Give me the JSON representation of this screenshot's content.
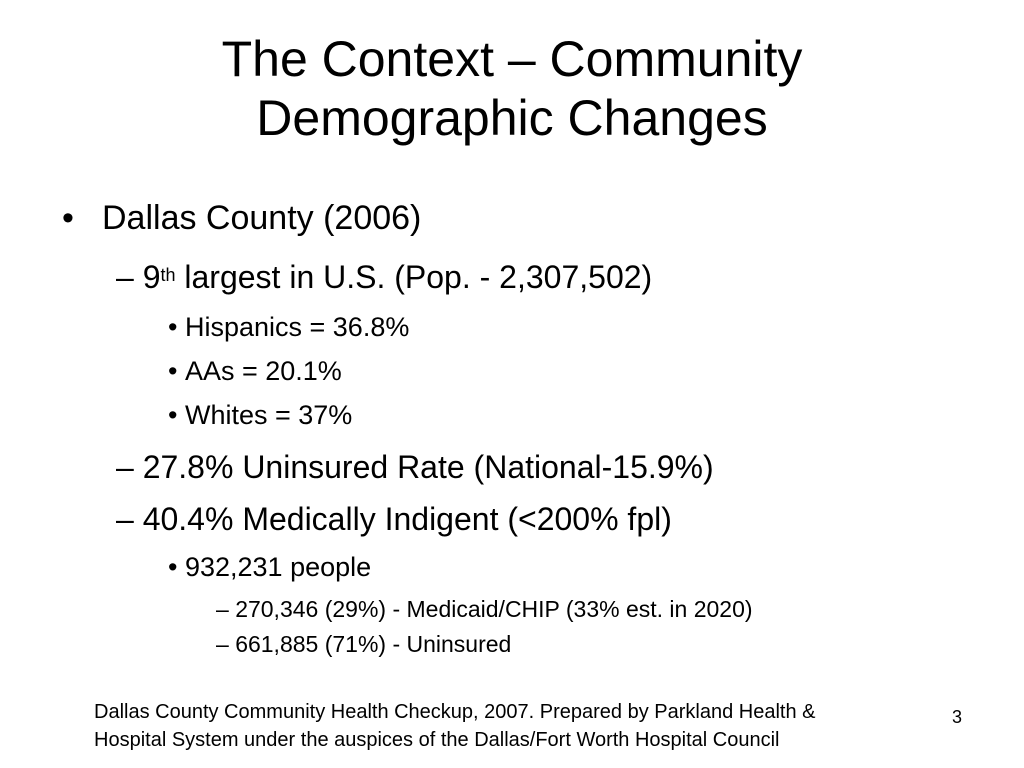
{
  "slide": {
    "title_line1": "The Context – Community",
    "title_line2": "Demographic Changes",
    "bullets": {
      "b1_marker": "•",
      "b1": "Dallas County (2006)",
      "b2_marker": "–",
      "b2_num": "9",
      "b2_sup": "th",
      "b2_rest": " largest in U.S. (Pop. - 2,307,502)",
      "b3_marker": "•",
      "b3": "Hispanics = 36.8%",
      "b4_marker": "•",
      "b4": "AAs = 20.1%",
      "b5_marker": "•",
      "b5": "Whites = 37%",
      "b6_marker": "–",
      "b6": "27.8% Uninsured Rate (National-15.9%)",
      "b7_marker": "–",
      "b7": "40.4% Medically Indigent (<200% fpl)",
      "b8_marker": "•",
      "b8": "932,231 people",
      "b9_marker": "–",
      "b9": "270,346 (29%) - Medicaid/CHIP (33% est. in 2020)",
      "b10_marker": "–",
      "b10": "661,885 (71%) - Uninsured"
    },
    "footer_line1": "Dallas County Community Health Checkup, 2007. Prepared by Parkland Health &",
    "footer_line2": "Hospital System under the auspices of the Dallas/Fort Worth Hospital Council",
    "page_number": "3"
  }
}
